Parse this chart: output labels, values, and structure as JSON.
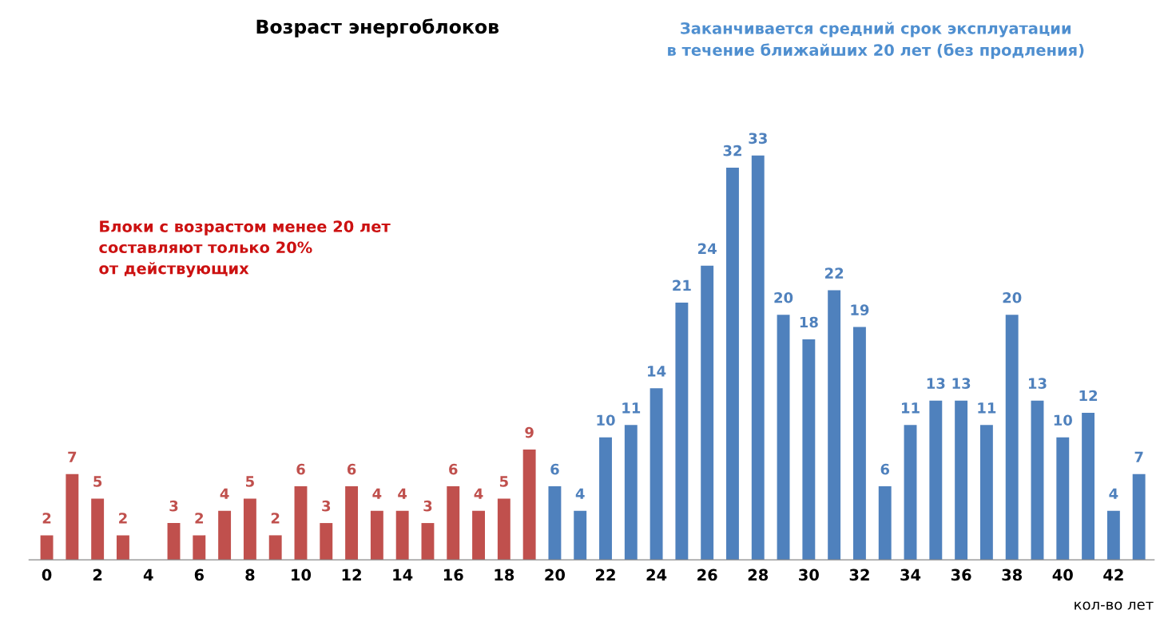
{
  "chart_data": {
    "type": "bar",
    "title": "Возраст энергоблоков",
    "xlabel": "кол-во лет",
    "categories": [
      "0",
      null,
      "2",
      null,
      "4",
      null,
      "6",
      null,
      "8",
      null,
      "10",
      null,
      "12",
      null,
      "14",
      null,
      "16",
      null,
      "18",
      null,
      "20",
      null,
      "22",
      null,
      "24",
      null,
      "26",
      null,
      "28",
      null,
      "30",
      null,
      "32",
      null,
      "34",
      null,
      "36",
      null,
      "38",
      null,
      "40",
      null,
      "42",
      null
    ],
    "values": [
      2,
      7,
      5,
      2,
      0,
      3,
      2,
      4,
      5,
      2,
      6,
      3,
      6,
      4,
      4,
      3,
      6,
      4,
      5,
      9,
      6,
      4,
      10,
      11,
      14,
      21,
      24,
      32,
      33,
      20,
      18,
      22,
      19,
      6,
      11,
      13,
      13,
      11,
      20,
      13,
      10,
      12,
      4,
      7
    ],
    "value_labels": [
      "2",
      "7",
      "5",
      "2",
      null,
      "3",
      "2",
      "4",
      "5",
      "2",
      "6",
      "3",
      "6",
      "4",
      "4",
      "3",
      "6",
      "4",
      "5",
      "9",
      "6",
      "4",
      "10",
      "11",
      "14",
      "21",
      "24",
      "32",
      "33",
      "20",
      "18",
      "22",
      "19",
      "6",
      "11",
      "13",
      "13",
      "11",
      "20",
      "13",
      "10",
      "12",
      "4",
      "7"
    ],
    "colors": [
      "#c0504d",
      "#c0504d",
      "#c0504d",
      "#c0504d",
      "#c0504d",
      "#c0504d",
      "#c0504d",
      "#c0504d",
      "#c0504d",
      "#c0504d",
      "#c0504d",
      "#c0504d",
      "#c0504d",
      "#c0504d",
      "#c0504d",
      "#c0504d",
      "#c0504d",
      "#c0504d",
      "#c0504d",
      "#c0504d",
      "#4f81bd",
      "#4f81bd",
      "#4f81bd",
      "#4f81bd",
      "#4f81bd",
      "#4f81bd",
      "#4f81bd",
      "#4f81bd",
      "#4f81bd",
      "#4f81bd",
      "#4f81bd",
      "#4f81bd",
      "#4f81bd",
      "#4f81bd",
      "#4f81bd",
      "#4f81bd",
      "#4f81bd",
      "#4f81bd",
      "#4f81bd",
      "#4f81bd",
      "#4f81bd",
      "#4f81bd",
      "#4f81bd",
      "#4f81bd"
    ],
    "annotations": [
      "Заканчивается средний срок эксплуатации\nв течение ближайших 20 лет (без продления)",
      "Блоки с возрастом менее 20 лет\nсоставляют только 20%\nот действующих"
    ],
    "tick_labels": "x",
    "grid": false,
    "legend": false
  }
}
